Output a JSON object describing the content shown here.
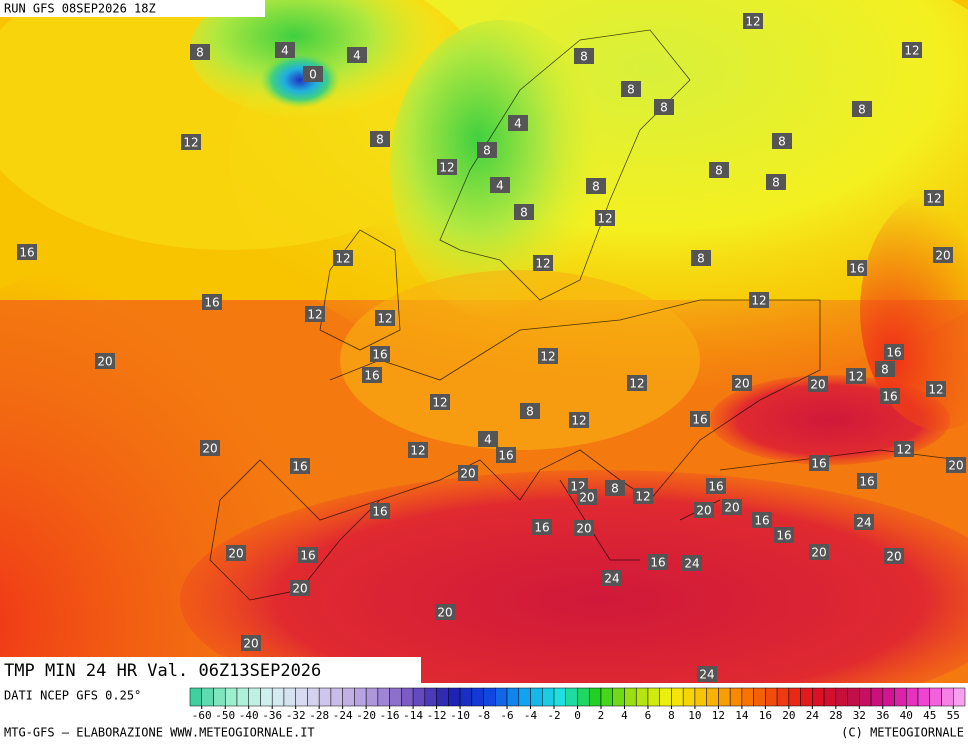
{
  "header": {
    "run": "RUN GFS 08SEP2026 18Z"
  },
  "title": "TMP MIN 24 HR Val. 06Z13SEP2026",
  "source": "DATI NCEP GFS 0.25°",
  "credit_left": "MTG-GFS — ELABORAZIONE WWW.METEOGIORNALE.IT",
  "credit_right": "(C) METEOGIORNALE",
  "legend": {
    "ticks": [
      -60,
      -50,
      -40,
      -36,
      -32,
      -28,
      -24,
      -20,
      -16,
      -14,
      -12,
      -10,
      -8,
      -6,
      -4,
      -2,
      0,
      2,
      4,
      6,
      8,
      10,
      12,
      14,
      16,
      20,
      24,
      28,
      32,
      36,
      40,
      45,
      55
    ]
  },
  "map_labels": [
    12,
    12,
    8,
    4,
    4,
    0,
    8,
    8,
    8,
    8,
    12,
    8,
    4,
    8,
    8,
    12,
    8,
    8,
    4,
    8,
    12,
    8,
    12,
    16,
    12,
    12,
    8,
    16,
    20,
    16,
    12,
    12,
    12,
    16,
    12,
    16,
    20,
    16,
    8,
    12,
    20,
    20,
    12,
    12,
    12,
    8,
    16,
    12,
    16,
    4,
    20,
    12,
    12,
    16,
    16,
    16,
    20,
    20,
    16,
    12,
    20,
    8,
    12,
    16,
    16,
    20,
    20,
    16,
    24,
    16,
    20,
    16,
    20,
    16,
    20,
    20,
    16,
    24,
    24,
    20,
    20,
    20,
    24
  ]
}
